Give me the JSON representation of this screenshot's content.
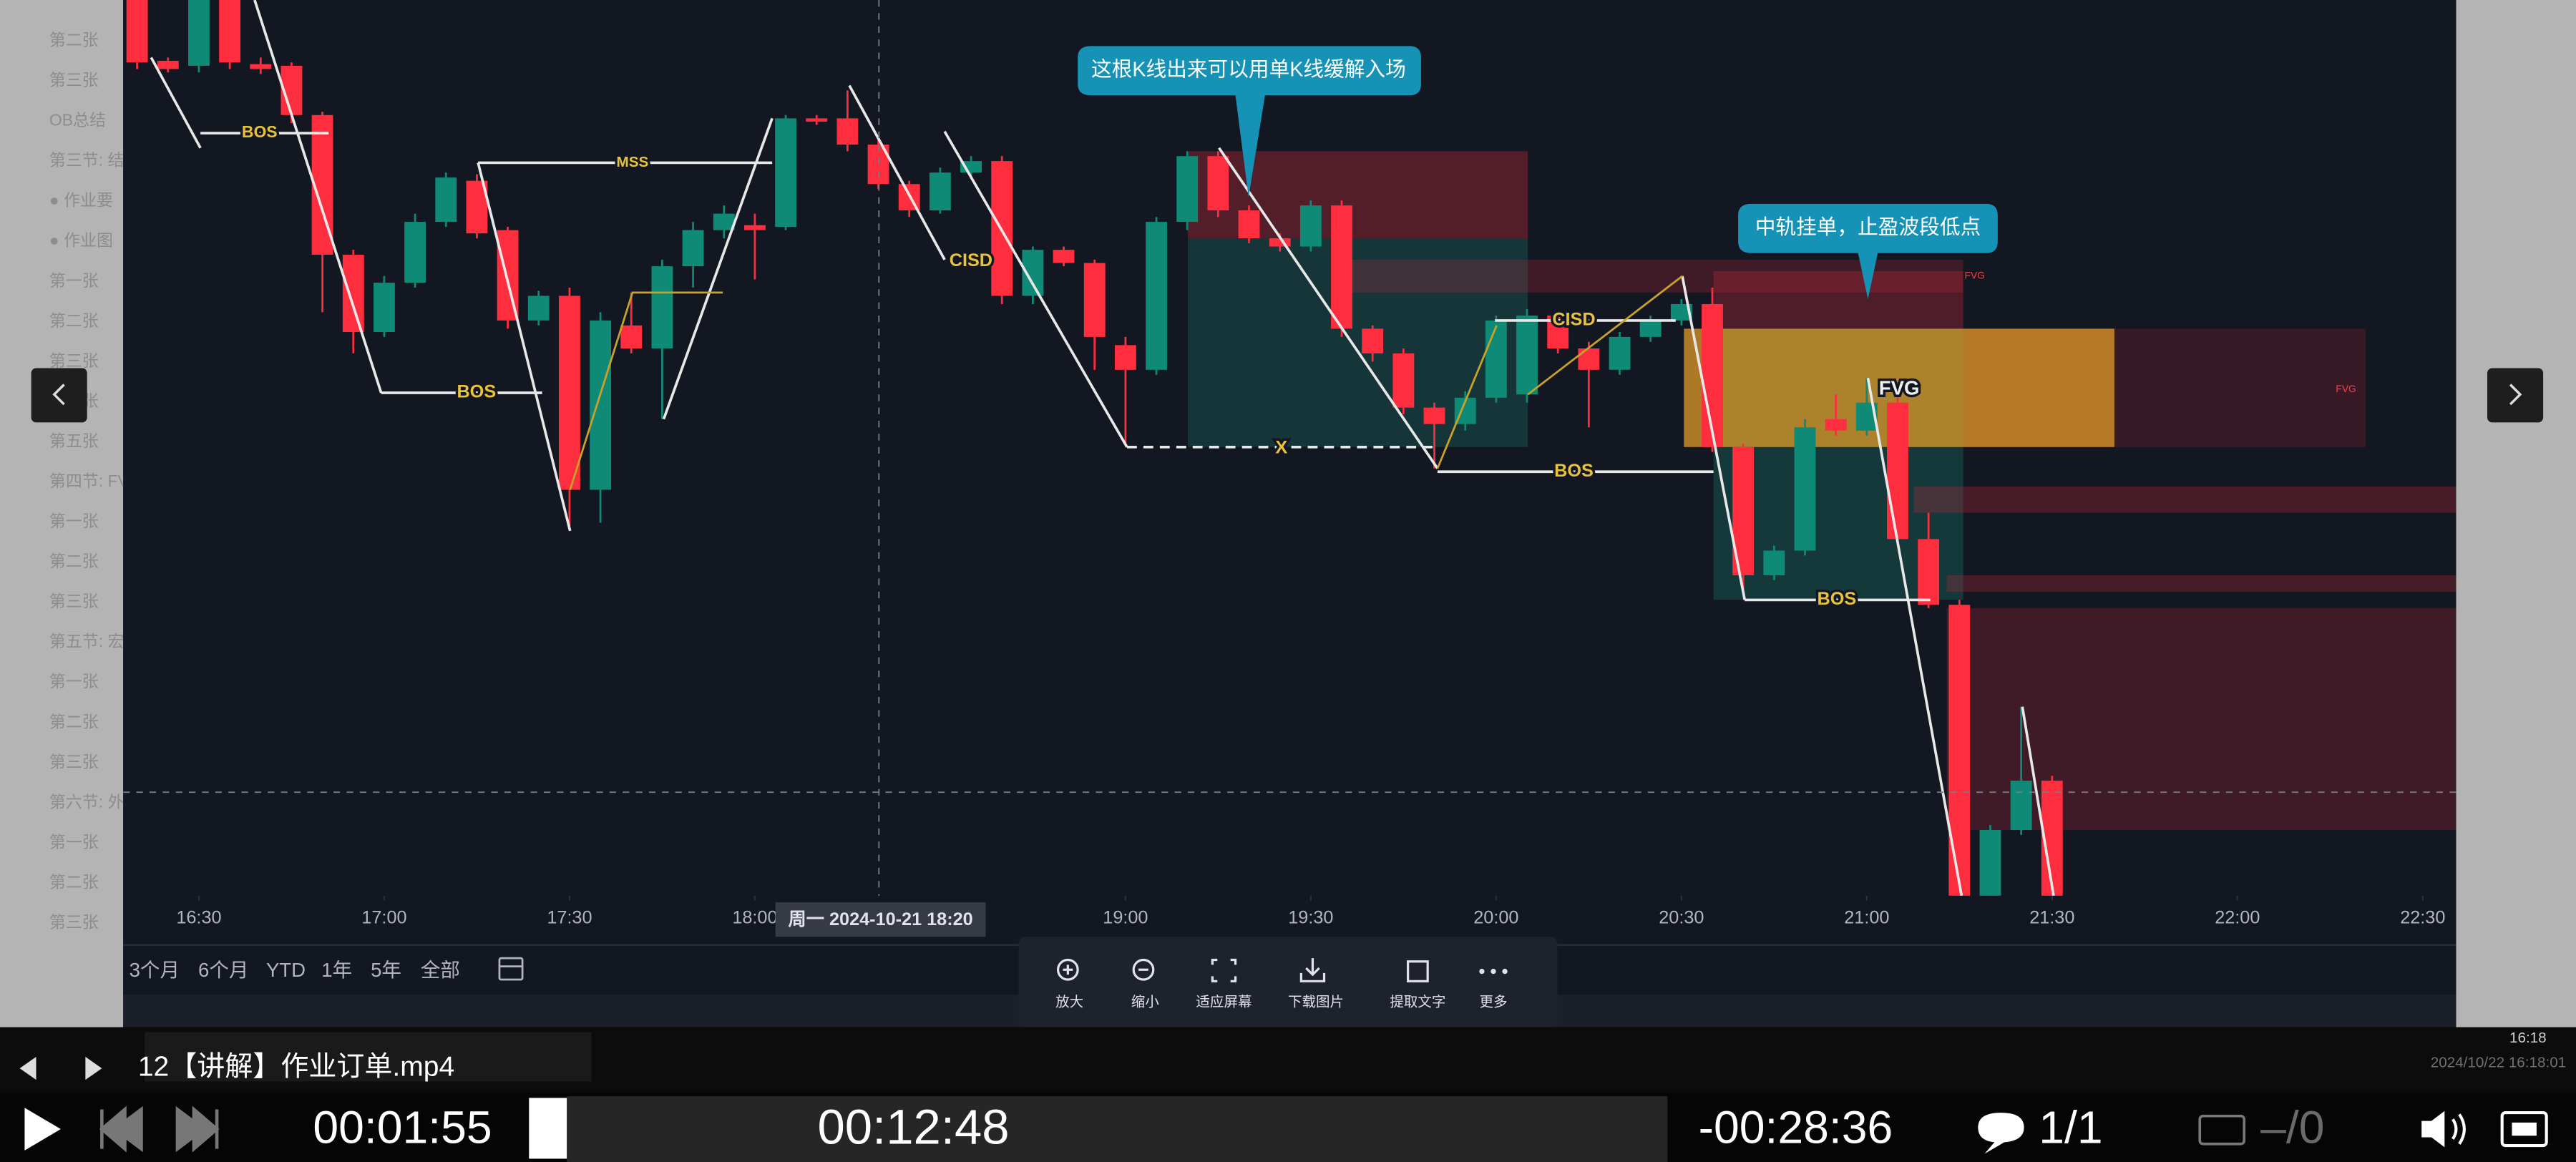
{
  "sidebar": {
    "items": [
      "第二张",
      "第三张",
      "OB总结",
      "第三节: 结",
      "● 作业要",
      "● 作业图",
      "第一张",
      "第二张",
      "第三张",
      "第四张",
      "第五张",
      "第四节: FV",
      "第一张",
      "第二张",
      "第三张",
      "第五节: 宏",
      "第一张",
      "第二张",
      "第三张",
      "第六节: 外",
      "第一张",
      "第二张",
      "第三张"
    ]
  },
  "chart_data": {
    "type": "candlestick",
    "open": [
      600,
      563,
      560,
      600,
      561,
      560,
      530,
      445,
      398,
      428,
      465,
      490,
      460,
      405,
      420,
      302,
      402,
      388,
      438,
      460,
      463,
      462,
      528,
      528,
      512,
      488,
      472,
      495,
      502,
      420,
      448,
      440,
      390,
      375,
      465,
      505,
      472,
      455,
      450,
      475,
      400,
      385,
      352,
      342,
      358,
      360,
      408,
      388,
      375,
      395,
      405,
      415,
      328,
      250,
      265,
      345,
      338,
      355,
      272,
      232,
      55,
      95,
      125
    ],
    "high": [
      600,
      565,
      600,
      600,
      565,
      562,
      532,
      448,
      432,
      470,
      495,
      494,
      462,
      423,
      425,
      410,
      422,
      442,
      465,
      475,
      470,
      530,
      530,
      545,
      515,
      490,
      498,
      505,
      505,
      450,
      450,
      442,
      395,
      468,
      508,
      508,
      475,
      458,
      478,
      478,
      402,
      388,
      355,
      362,
      408,
      412,
      410,
      392,
      398,
      408,
      418,
      425,
      330,
      268,
      345,
      360,
      370,
      360,
      288,
      235,
      98,
      170,
      128
    ],
    "low": [
      558,
      556,
      556,
      558,
      555,
      525,
      410,
      385,
      395,
      425,
      462,
      455,
      400,
      402,
      280,
      282,
      385,
      345,
      425,
      455,
      430,
      460,
      524,
      508,
      485,
      468,
      470,
      492,
      415,
      415,
      438,
      375,
      330,
      372,
      460,
      468,
      452,
      447,
      447,
      395,
      380,
      348,
      315,
      338,
      355,
      355,
      385,
      340,
      372,
      392,
      402,
      325,
      240,
      247,
      262,
      335,
      335,
      268,
      230,
      55,
      55,
      92,
      55
    ],
    "close": [
      562,
      558,
      600,
      562,
      558,
      530,
      445,
      398,
      428,
      465,
      492,
      458,
      405,
      420,
      302,
      405,
      388,
      438,
      460,
      470,
      460,
      528,
      526,
      512,
      488,
      472,
      495,
      502,
      420,
      448,
      440,
      395,
      375,
      465,
      505,
      472,
      455,
      450,
      475,
      400,
      385,
      352,
      342,
      358,
      405,
      408,
      388,
      375,
      395,
      405,
      415,
      328,
      250,
      265,
      340,
      338,
      355,
      272,
      232,
      55,
      95,
      125,
      55
    ],
    "up_color": "#0e8a76",
    "down_color": "#ff2e3e",
    "xlim": [
      -0.45,
      75.08
    ],
    "ylim": [
      55,
      600
    ],
    "xticks": [
      {
        "value": 2,
        "label": "16:30"
      },
      {
        "value": 8,
        "label": "17:00"
      },
      {
        "value": 14,
        "label": "17:30"
      },
      {
        "value": 20,
        "label": "18:00"
      },
      {
        "value": 32,
        "label": "19:00"
      },
      {
        "value": 38,
        "label": "19:30"
      },
      {
        "value": 44,
        "label": "20:00"
      },
      {
        "value": 50,
        "label": "20:30"
      },
      {
        "value": 56,
        "label": "21:00"
      },
      {
        "value": 62,
        "label": "21:30"
      },
      {
        "value": 68,
        "label": "22:00"
      },
      {
        "value": 74,
        "label": "22:30"
      }
    ],
    "crosshair_label": "周一 2024-10-21   18:20",
    "annotations": [
      "BOS",
      "MSS",
      "BOS",
      "CISD",
      "X",
      "CISD",
      "BOS",
      "BOS",
      "FVG",
      "FVG",
      "FVG"
    ],
    "callouts": [
      "这根K线出来可以用单K线缓解入场",
      "中轨挂单，止盈波段低点"
    ]
  },
  "range_buttons": [
    "3个月",
    "6个月",
    "YTD",
    "1年",
    "5年",
    "全部"
  ],
  "toolbar": [
    "放大",
    "缩小",
    "适应屏幕",
    "下载图片",
    "提取文字",
    "更多"
  ],
  "taskbar": {
    "file_name": "12【讲解】作业订单.mp4",
    "clock": "16:18",
    "timestamp": "2024/10/22 16:18:01"
  },
  "player": {
    "elapsed": "00:01:55",
    "hover_time": "00:12:48",
    "remaining": "-00:28:36",
    "comments": "1/1",
    "subtitles": "–/0"
  }
}
